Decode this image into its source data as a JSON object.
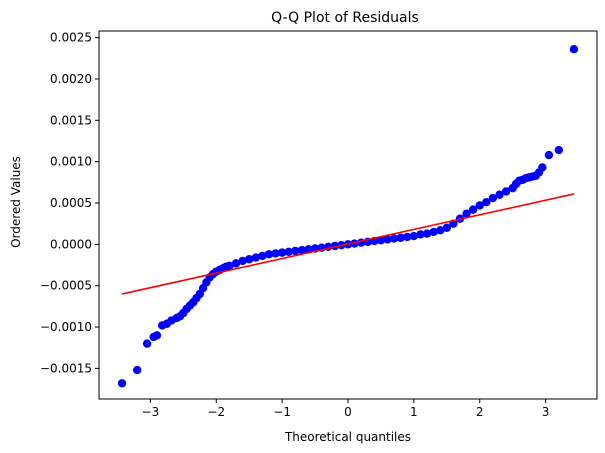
{
  "chart_data": {
    "type": "scatter",
    "title": "Q-Q Plot of Residuals",
    "xlabel": "Theoretical quantiles",
    "ylabel": "Ordered Values",
    "xlim": [
      -3.78,
      3.78
    ],
    "ylim": [
      -0.00187,
      0.00258
    ],
    "x_ticks": [
      -3,
      -2,
      -1,
      0,
      1,
      2,
      3
    ],
    "x_tick_labels": [
      "−3",
      "−2",
      "−1",
      "0",
      "1",
      "2",
      "3"
    ],
    "y_ticks": [
      -0.0015,
      -0.001,
      -0.0005,
      0.0,
      0.0005,
      0.001,
      0.0015,
      0.002,
      0.0025
    ],
    "y_tick_labels": [
      "−0.0015",
      "−0.0010",
      "−0.0005",
      "0.0000",
      "0.0005",
      "0.0010",
      "0.0015",
      "0.0020",
      "0.0025"
    ],
    "grid": false,
    "series": [
      {
        "kind": "points",
        "color": "#0000ff",
        "points": [
          [
            -3.43,
            -0.00168
          ],
          [
            -3.2,
            -0.00152
          ],
          [
            -3.05,
            -0.0012
          ],
          [
            -2.95,
            -0.00112
          ],
          [
            -2.9,
            -0.0011
          ],
          [
            -2.82,
            -0.00098
          ],
          [
            -2.75,
            -0.00096
          ],
          [
            -2.68,
            -0.00092
          ],
          [
            -2.6,
            -0.00089
          ],
          [
            -2.55,
            -0.00087
          ],
          [
            -2.5,
            -0.00083
          ],
          [
            -2.45,
            -0.00078
          ],
          [
            -2.4,
            -0.00074
          ],
          [
            -2.35,
            -0.0007
          ],
          [
            -2.3,
            -0.00065
          ],
          [
            -2.25,
            -0.0006
          ],
          [
            -2.2,
            -0.00053
          ],
          [
            -2.15,
            -0.00046
          ],
          [
            -2.1,
            -0.0004
          ],
          [
            -2.05,
            -0.00036
          ],
          [
            -2.0,
            -0.00033
          ],
          [
            -1.95,
            -0.00031
          ],
          [
            -1.9,
            -0.00029
          ],
          [
            -1.85,
            -0.00027
          ],
          [
            -1.8,
            -0.00026
          ],
          [
            -1.7,
            -0.00023
          ],
          [
            -1.6,
            -0.0002
          ],
          [
            -1.5,
            -0.00018
          ],
          [
            -1.4,
            -0.00016
          ],
          [
            -1.3,
            -0.00014
          ],
          [
            -1.2,
            -0.00012
          ],
          [
            -1.1,
            -0.00011
          ],
          [
            -1.0,
            -0.0001
          ],
          [
            -0.9,
            -9e-05
          ],
          [
            -0.8,
            -8e-05
          ],
          [
            -0.7,
            -7e-05
          ],
          [
            -0.6,
            -6e-05
          ],
          [
            -0.5,
            -5e-05
          ],
          [
            -0.4,
            -4e-05
          ],
          [
            -0.3,
            -3e-05
          ],
          [
            -0.2,
            -2e-05
          ],
          [
            -0.1,
            -1e-05
          ],
          [
            0.0,
            0.0
          ],
          [
            0.1,
            1e-05
          ],
          [
            0.2,
            2e-05
          ],
          [
            0.3,
            3e-05
          ],
          [
            0.4,
            4e-05
          ],
          [
            0.5,
            5e-05
          ],
          [
            0.6,
            6e-05
          ],
          [
            0.7,
            7e-05
          ],
          [
            0.8,
            8e-05
          ],
          [
            0.9,
            9e-05
          ],
          [
            1.0,
            0.0001
          ],
          [
            1.1,
            0.00012
          ],
          [
            1.2,
            0.00013
          ],
          [
            1.3,
            0.00015
          ],
          [
            1.4,
            0.00017
          ],
          [
            1.5,
            0.0002
          ],
          [
            1.6,
            0.00025
          ],
          [
            1.7,
            0.00031
          ],
          [
            1.8,
            0.00037
          ],
          [
            1.9,
            0.00042
          ],
          [
            2.0,
            0.00047
          ],
          [
            2.1,
            0.00051
          ],
          [
            2.2,
            0.00056
          ],
          [
            2.3,
            0.0006
          ],
          [
            2.4,
            0.00064
          ],
          [
            2.5,
            0.00068
          ],
          [
            2.55,
            0.00073
          ],
          [
            2.6,
            0.00077
          ],
          [
            2.65,
            0.00078
          ],
          [
            2.7,
            0.0008
          ],
          [
            2.75,
            0.00081
          ],
          [
            2.8,
            0.00082
          ],
          [
            2.85,
            0.00083
          ],
          [
            2.9,
            0.00087
          ],
          [
            2.95,
            0.00093
          ],
          [
            3.05,
            0.00108
          ],
          [
            3.2,
            0.00114
          ],
          [
            3.43,
            0.00236
          ]
        ]
      },
      {
        "kind": "fit-line",
        "color": "#ff0000",
        "x": [
          -3.43,
          3.43
        ],
        "y": [
          -0.0006,
          0.00061
        ]
      }
    ]
  }
}
